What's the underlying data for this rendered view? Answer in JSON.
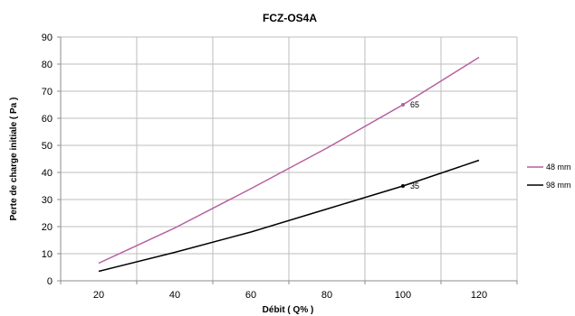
{
  "chart_data": {
    "type": "line",
    "title": "FCZ-OS4A",
    "xlabel": "Débit  ( Q% )",
    "ylabel": "Perte de charge initiale  ( Pa )",
    "xlim": [
      10,
      130
    ],
    "ylim": [
      0,
      90
    ],
    "xticks": [
      20,
      40,
      60,
      80,
      100,
      120
    ],
    "yticks": [
      0,
      10,
      20,
      30,
      40,
      50,
      60,
      70,
      80,
      90
    ],
    "grid": true,
    "legend_position": "right",
    "series": [
      {
        "name": "48 mm",
        "color": "#b65fa0",
        "x": [
          20,
          40,
          60,
          80,
          100,
          120
        ],
        "y": [
          6.5,
          19.5,
          34,
          49,
          65,
          82.5
        ],
        "labeled_point": {
          "x": 100,
          "y": 65,
          "label": "65"
        }
      },
      {
        "name": "98 mm",
        "color": "#000000",
        "x": [
          20,
          40,
          60,
          80,
          100,
          120
        ],
        "y": [
          3.5,
          10.5,
          18,
          26.5,
          35,
          44.5
        ],
        "labeled_point": {
          "x": 100,
          "y": 35,
          "label": "35"
        }
      }
    ]
  }
}
